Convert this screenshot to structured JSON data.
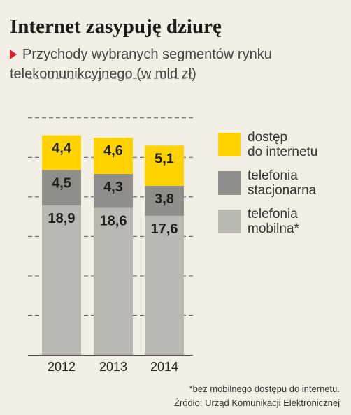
{
  "header": {
    "title": "Internet zasypuję dziurę",
    "subtitle": "Przychody wybranych segmentów rynku telekomunikcyjnego (w mld zł)"
  },
  "chart_data": {
    "type": "bar",
    "stacked": true,
    "categories": [
      "2012",
      "2013",
      "2014"
    ],
    "series": [
      {
        "name": "telefonia mobilna*",
        "values": [
          18.9,
          18.6,
          17.6
        ],
        "labels": [
          "18,9",
          "18,6",
          "17,6"
        ],
        "color": "#b9b8b3"
      },
      {
        "name": "telefonia stacjonarna",
        "values": [
          4.5,
          4.3,
          3.8
        ],
        "labels": [
          "4,5",
          "4,3",
          "3,8"
        ],
        "color": "#8f8e8a"
      },
      {
        "name": "dostęp do internetu",
        "values": [
          4.4,
          4.6,
          5.1
        ],
        "labels": [
          "4,4",
          "4,6",
          "5,1"
        ],
        "color": "#ffd200"
      }
    ],
    "ylim": [
      0,
      35
    ],
    "grid": true,
    "legend_position": "right"
  },
  "legend": [
    {
      "label": "dostęp\ndo internetu",
      "color": "#ffd200"
    },
    {
      "label": "telefonia\nstacjonarna",
      "color": "#8f8e8a"
    },
    {
      "label": "telefonia\nmobilna*",
      "color": "#b9b8b3"
    }
  ],
  "footer": {
    "note": "*bez mobilnego dostępu do internetu.",
    "source": "Źródło: Urząd Komunikacji Elektronicznej"
  }
}
